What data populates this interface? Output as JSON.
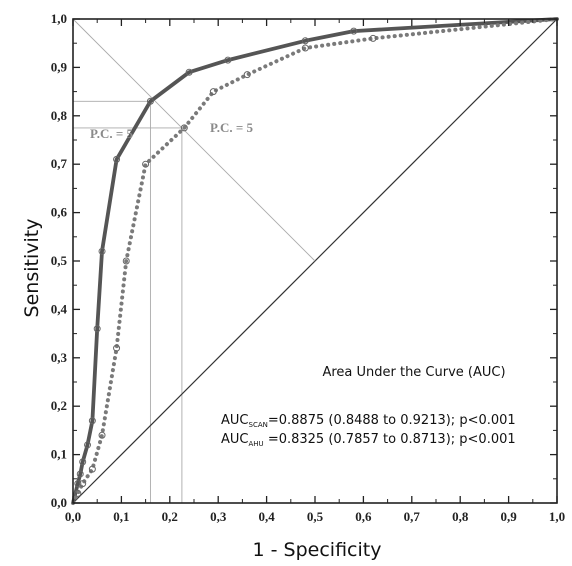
{
  "chart_data": {
    "type": "line",
    "xlabel": "1 - Specificity",
    "ylabel": "Sensitivity",
    "xlim": [
      0,
      1
    ],
    "ylim": [
      0,
      1
    ],
    "x_ticks": [
      "0,0",
      "0,1",
      "0,2",
      "0,3",
      "0,4",
      "0,5",
      "0,6",
      "0,7",
      "0,8",
      "0,9",
      "1,0"
    ],
    "y_ticks": [
      "0,0",
      "0,1",
      "0,2",
      "0,3",
      "0,4",
      "0,5",
      "0,6",
      "0,7",
      "0,8",
      "0,9",
      "1,0"
    ],
    "grid": false,
    "series": [
      {
        "name": "AUC SCAN",
        "color": "#555555",
        "style": "solid",
        "x": [
          0,
          0.01,
          0.015,
          0.02,
          0.03,
          0.04,
          0.05,
          0.06,
          0.09,
          0.16,
          0.24,
          0.32,
          0.48,
          0.58,
          1.0
        ],
        "y": [
          0,
          0.04,
          0.06,
          0.085,
          0.12,
          0.17,
          0.36,
          0.52,
          0.71,
          0.83,
          0.89,
          0.915,
          0.955,
          0.975,
          1.0
        ]
      },
      {
        "name": "AUC AHU",
        "color": "#7a7a7a",
        "style": "dotted",
        "x": [
          0,
          0.01,
          0.02,
          0.04,
          0.06,
          0.09,
          0.11,
          0.15,
          0.23,
          0.29,
          0.36,
          0.48,
          0.62,
          1.0
        ],
        "y": [
          0,
          0.02,
          0.04,
          0.07,
          0.14,
          0.32,
          0.5,
          0.7,
          0.775,
          0.85,
          0.885,
          0.94,
          0.96,
          1.0
        ]
      }
    ],
    "cutoffs": [
      {
        "label": "P.C. = 5",
        "x": 0.16,
        "y": 0.83
      },
      {
        "label": "P.C. = 5",
        "x": 0.225,
        "y": 0.775
      }
    ],
    "annotation": {
      "heading": "Area Under the Curve (AUC)",
      "line1": {
        "prefix": "AUC",
        "sub": "SCAN",
        "text": "=0.8875 (0.8488 to 0.9213); p<0.001"
      },
      "line2": {
        "prefix": "AUC",
        "sub": "AHU",
        "text": " =0.8325 (0.7857 to 0.8713); p<0.001"
      }
    }
  }
}
